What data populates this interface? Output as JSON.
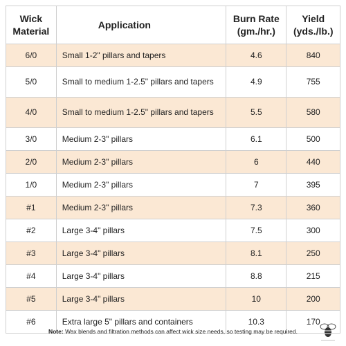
{
  "table": {
    "header": [
      [
        "Wick",
        "Material"
      ],
      "Application",
      [
        "Burn Rate",
        "(gm./hr.)"
      ],
      [
        "Yield",
        "(yds./lb.)"
      ]
    ],
    "rows": [
      [
        "6/0",
        "Small 1-2\" pillars and tapers",
        "4.6",
        "840"
      ],
      [
        "5/0",
        "Small to medium 1-2.5\" pillars and tapers",
        "4.9",
        "755"
      ],
      [
        "4/0",
        "Small to medium 1-2.5\" pillars and tapers",
        "5.5",
        "580"
      ],
      [
        "3/0",
        "Medium 2-3\" pillars",
        "6.1",
        "500"
      ],
      [
        "2/0",
        "Medium 2-3\" pillars",
        "6",
        "440"
      ],
      [
        "1/0",
        "Medium 2-3\" pillars",
        "7",
        "395"
      ],
      [
        "#1",
        "Medium 2-3\" pillars",
        "7.3",
        "360"
      ],
      [
        "#2",
        "Large 3-4\" pillars",
        "7.5",
        "300"
      ],
      [
        "#3",
        "Large 3-4\" pillars",
        "8.1",
        "250"
      ],
      [
        "#4",
        "Large 3-4\" pillars",
        "8.8",
        "215"
      ],
      [
        "#5",
        "Large 3-4\" pillars",
        "10",
        "200"
      ],
      [
        "#6",
        "Extra large 5\" pillars and containers",
        "10.3",
        "170"
      ]
    ]
  },
  "note": {
    "label": "Note:",
    "text": "Wax blends and filtration methods can affect wick size needs, so testing may be required."
  }
}
